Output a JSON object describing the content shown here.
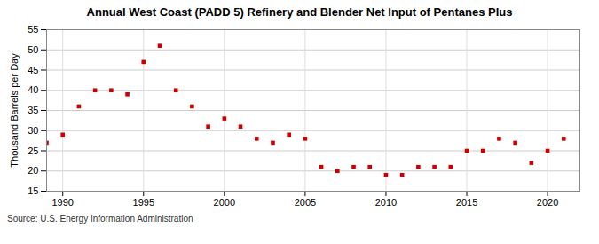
{
  "chart_data": {
    "type": "scatter",
    "title": "Annual West Coast (PADD 5) Refinery and Blender Net Input of Pentanes Plus",
    "y_label": "Thousand Barrels per Day",
    "source": "Source: U.S. Energy Information Administration",
    "x": [
      1989,
      1990,
      1991,
      1992,
      1993,
      1994,
      1995,
      1996,
      1997,
      1998,
      1999,
      2000,
      2001,
      2002,
      2003,
      2004,
      2005,
      2006,
      2007,
      2008,
      2009,
      2010,
      2011,
      2012,
      2013,
      2014,
      2015,
      2016,
      2017,
      2018,
      2019,
      2020,
      2021
    ],
    "values": [
      27,
      29,
      36,
      40,
      40,
      39,
      47,
      51,
      40,
      36,
      31,
      33,
      31,
      28,
      27,
      29,
      28,
      21,
      20,
      21,
      21,
      19,
      19,
      21,
      21,
      21,
      25,
      25,
      28,
      27,
      22,
      25,
      28
    ],
    "color": "#cc0000",
    "marker": "square",
    "xlim": [
      1989,
      2022
    ],
    "xticks": [
      1990,
      1995,
      2000,
      2005,
      2010,
      2015,
      2020
    ],
    "ylim": [
      15,
      55
    ],
    "yticks": [
      15,
      20,
      25,
      30,
      35,
      40,
      45,
      50,
      55
    ],
    "grid": true
  }
}
